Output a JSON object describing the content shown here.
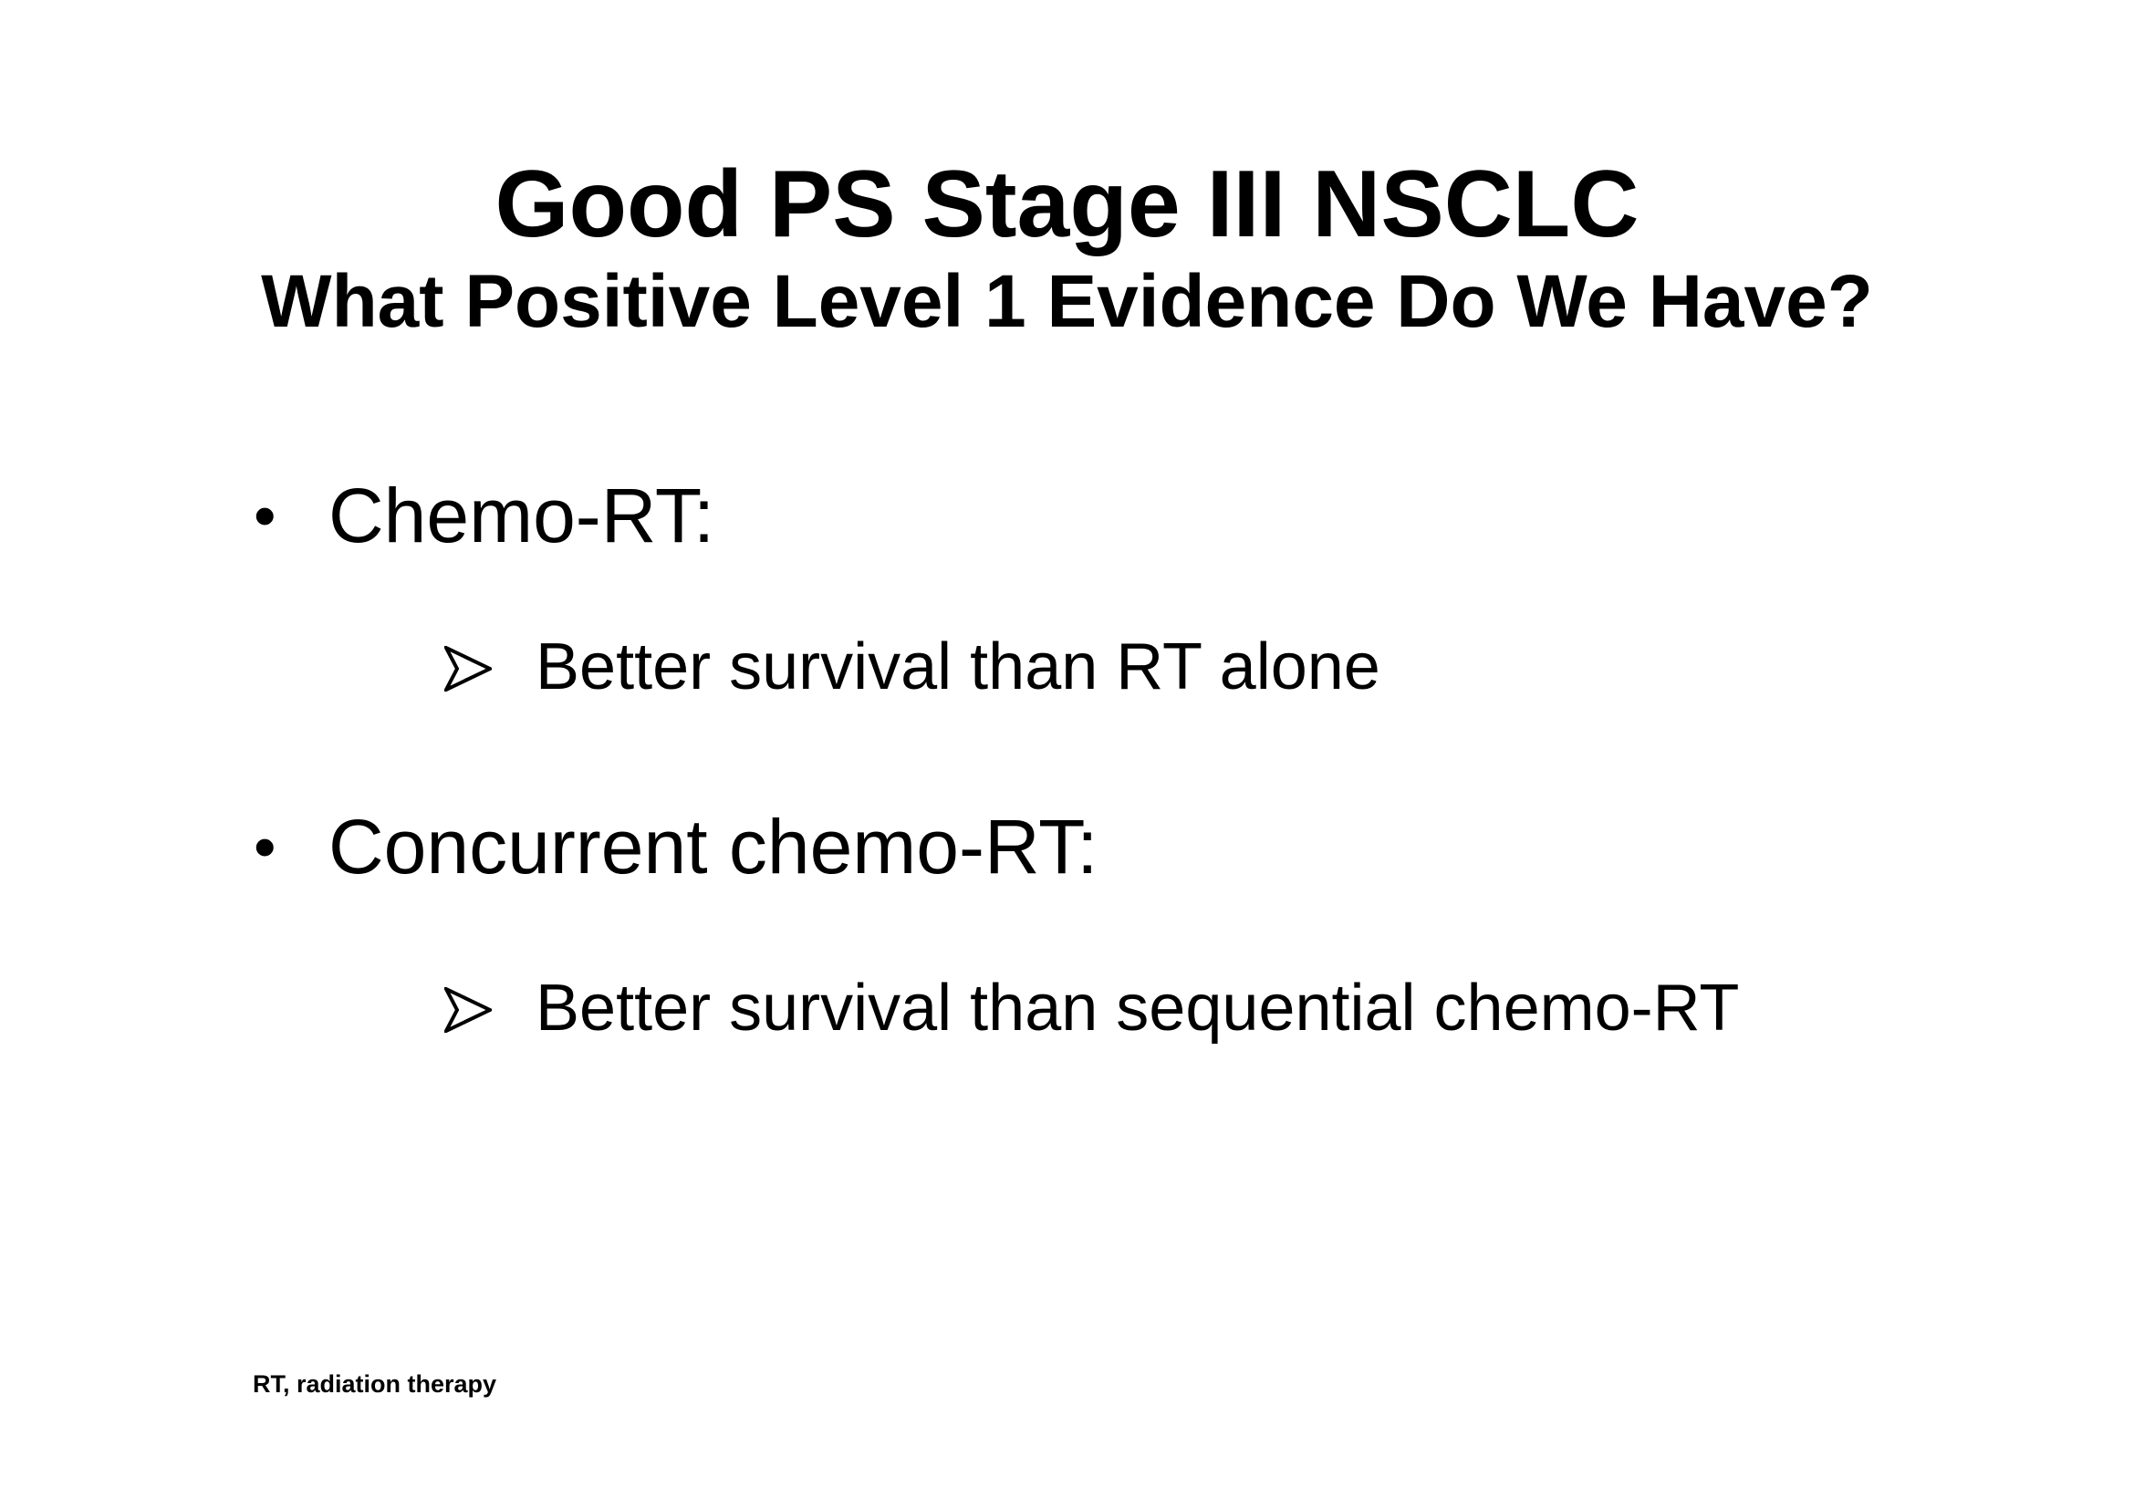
{
  "slide": {
    "title": "Good PS Stage III NSCLC",
    "subtitle": "What Positive Level 1 Evidence Do We Have?",
    "bullets": [
      {
        "label": "Chemo-RT:",
        "sub": "Better survival than RT alone"
      },
      {
        "label": "Concurrent chemo-RT:",
        "sub": "Better survival than sequential chemo-RT"
      }
    ],
    "footnote": "RT, radiation therapy",
    "bullet_icon": "bullet-dot",
    "sub_bullet_icon": "arrowhead-right",
    "colors": {
      "background": "#ffffff",
      "text": "#000000"
    }
  }
}
